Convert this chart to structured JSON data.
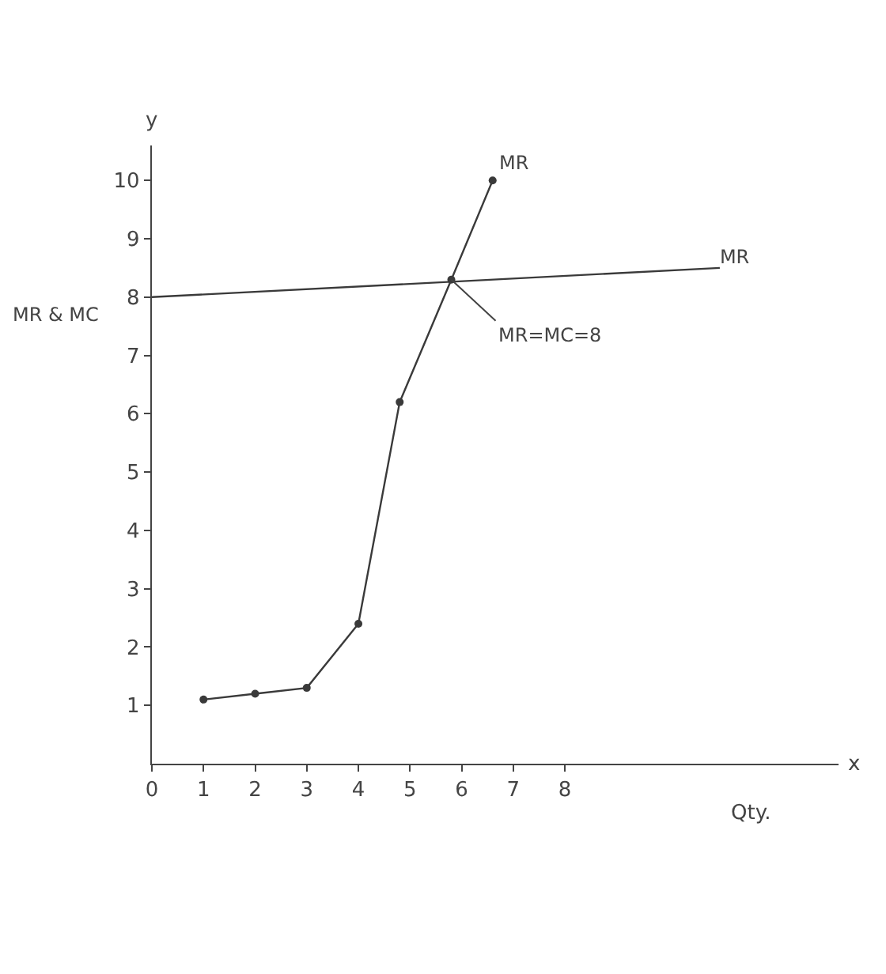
{
  "chart_data": {
    "type": "line",
    "xlabel": "Qty.",
    "ylabel": "MR & MC",
    "annotations": [
      "y",
      "x",
      {
        "text": "MR=MC=8",
        "x": 5.8,
        "y": 8.3
      }
    ],
    "series": [
      {
        "name": "MR",
        "color": "#3a3a3a",
        "x": [
          1,
          2,
          3,
          4,
          4.8,
          5.8,
          6.6
        ],
        "values": [
          1.1,
          1.2,
          1.3,
          2.4,
          6.2,
          8.3,
          10
        ],
        "marker": "circle"
      },
      {
        "name": "MR",
        "color": "#3a3a3a",
        "x": [
          0,
          11
        ],
        "values": [
          8,
          8.5
        ],
        "marker": "none"
      }
    ],
    "xlim": [
      0,
      13.3
    ],
    "ylim": [
      0,
      10.6
    ],
    "xticks": [
      0,
      1,
      2,
      3,
      4,
      5,
      6,
      7,
      8
    ],
    "yticks": [
      1,
      2,
      3,
      4,
      5,
      6,
      7,
      8,
      9,
      10
    ],
    "grid": false,
    "legend": false,
    "line_style": "solid"
  }
}
